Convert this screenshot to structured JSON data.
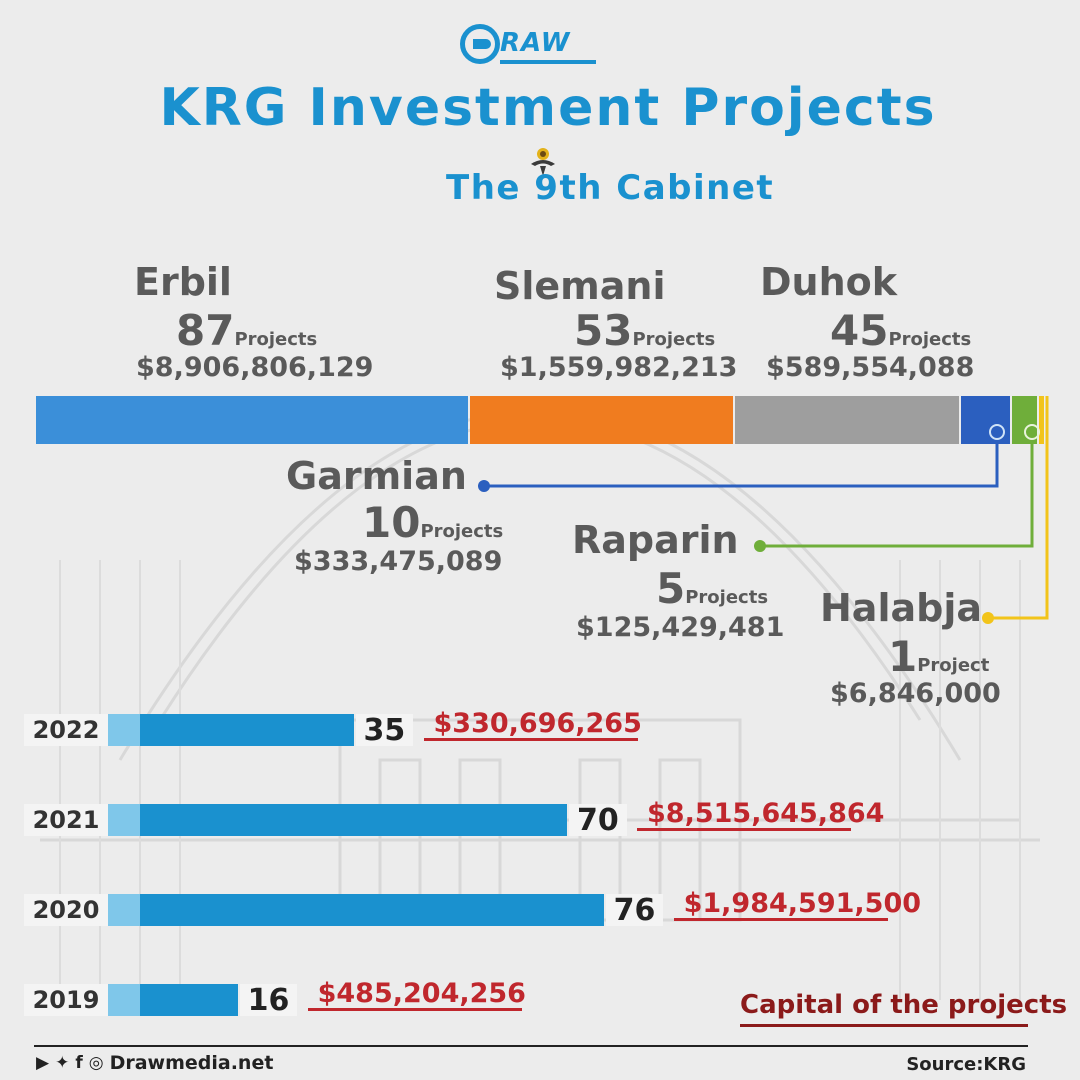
{
  "brand": {
    "logo_text": "RAW",
    "website": "Drawmedia.net",
    "social_icons": [
      "youtube-icon",
      "twitter-icon",
      "facebook-icon",
      "instagram-icon"
    ]
  },
  "header": {
    "title": "KRG Investment Projects",
    "subtitle": "The 9th Cabinet"
  },
  "colors": {
    "title": "#1a91cf",
    "erbil": "#3b8fd9",
    "slemani": "#f07c1f",
    "duhok": "#9e9e9e",
    "garmian": "#2b5fbf",
    "raparin": "#6fae3a",
    "halabja": "#f2c41a",
    "year_bar": "#1a91cf",
    "year_bar_light": "#7fc7ea",
    "capital": "#c0272d"
  },
  "chart_data": [
    {
      "type": "bar",
      "orientation": "stacked-horizontal",
      "categories": [
        "Erbil",
        "Slemani",
        "Duhok",
        "Garmian",
        "Raparin",
        "Halabja"
      ],
      "values": [
        87,
        53,
        45,
        10,
        5,
        1
      ],
      "unit_labels": [
        "Projects",
        "Projects",
        "Projects",
        "Projects",
        "Projects",
        "Project"
      ],
      "capital": [
        "$8,906,806,129",
        "$1,559,982,213",
        "$589,554,088",
        "$333,475,089",
        "$125,429,481",
        "$6,846,000"
      ]
    },
    {
      "type": "bar",
      "orientation": "horizontal",
      "categories": [
        "2022",
        "2021",
        "2020",
        "2019"
      ],
      "values": [
        35,
        70,
        76,
        16
      ],
      "capital": [
        "$330,696,265",
        "$8,515,645,864",
        "$1,984,591,500",
        "$485,204,256"
      ],
      "legend_label": "Capital of the projects"
    }
  ],
  "footer": {
    "source": "Source:KRG"
  }
}
